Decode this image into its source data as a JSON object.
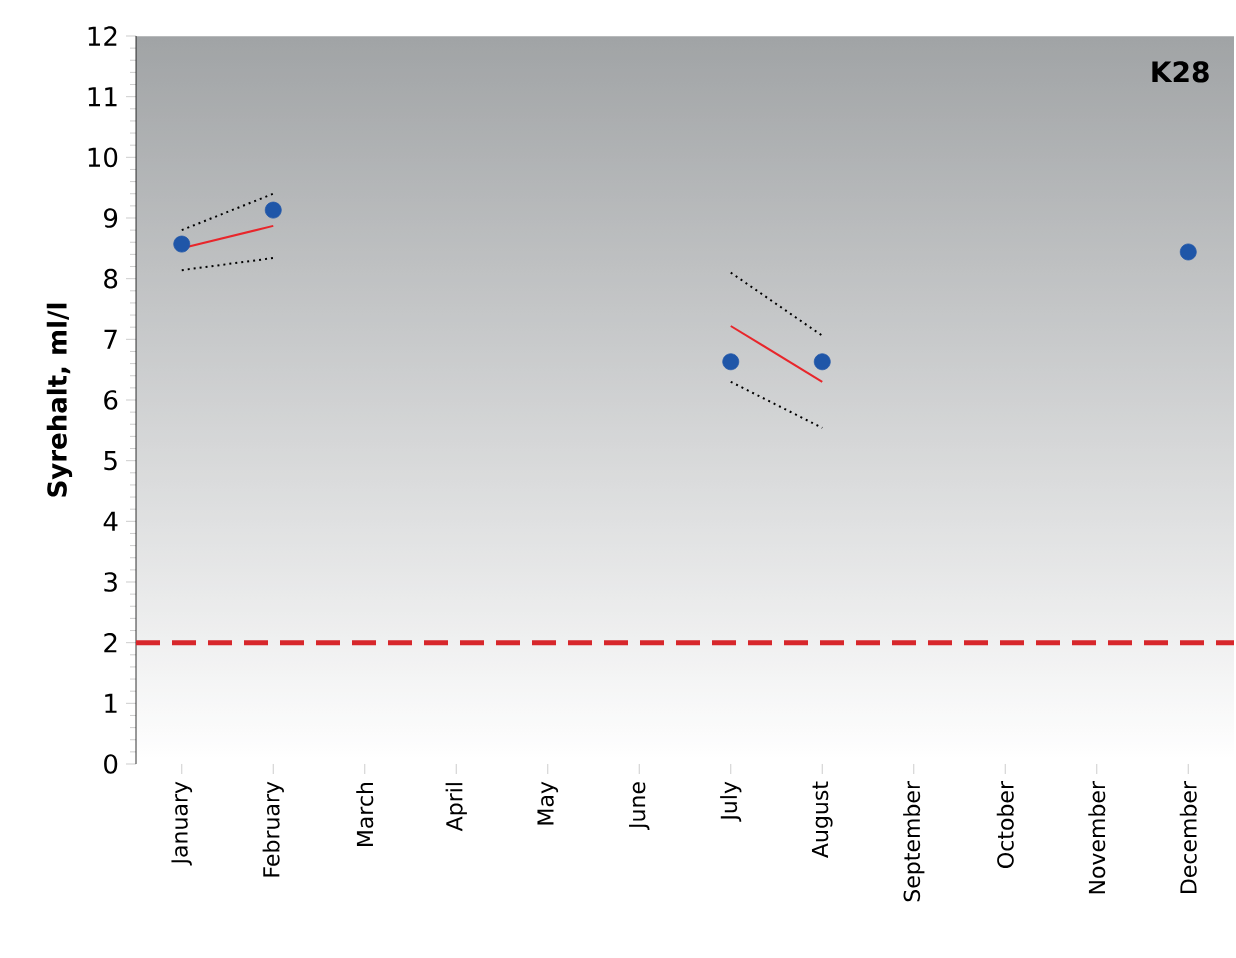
{
  "chart_data": {
    "type": "scatter",
    "ylabel": "Syrehalt, ml/l",
    "categories": [
      "January",
      "February",
      "March",
      "April",
      "May",
      "June",
      "July",
      "August",
      "September",
      "October",
      "November",
      "December"
    ],
    "ylim": [
      0,
      12
    ],
    "yticks": [
      0,
      1,
      2,
      3,
      4,
      5,
      6,
      7,
      8,
      9,
      10,
      11,
      12
    ],
    "grid": false,
    "series": [
      {
        "marker": "circle",
        "color": "#1f56a8",
        "values": [
          8.57,
          9.13,
          null,
          null,
          null,
          null,
          6.63,
          6.63,
          null,
          null,
          null,
          8.44
        ]
      },
      {
        "type": "line",
        "marker": "none",
        "line_style": "solid",
        "color": "#e8262b",
        "x": [
          "January",
          "February"
        ],
        "values": [
          8.5,
          8.87
        ]
      },
      {
        "type": "line",
        "marker": "none",
        "line_style": "dotted",
        "color": "#000000",
        "x": [
          "January",
          "February"
        ],
        "values": [
          8.14,
          8.34
        ]
      },
      {
        "type": "line",
        "marker": "none",
        "line_style": "dotted",
        "color": "#000000",
        "x": [
          "January",
          "February"
        ],
        "values": [
          8.8,
          9.4
        ]
      },
      {
        "type": "line",
        "marker": "none",
        "line_style": "solid",
        "color": "#e8262b",
        "x": [
          "July",
          "August"
        ],
        "values": [
          7.22,
          6.3
        ]
      },
      {
        "type": "line",
        "marker": "none",
        "line_style": "dotted",
        "color": "#000000",
        "x": [
          "July",
          "August"
        ],
        "values": [
          6.3,
          5.54
        ]
      },
      {
        "type": "line",
        "marker": "none",
        "line_style": "dotted",
        "color": "#000000",
        "x": [
          "July",
          "August"
        ],
        "values": [
          8.1,
          7.06
        ]
      }
    ],
    "ref_lines": [
      {
        "axis": "y",
        "value": 2,
        "color": "#d7262b",
        "line_style": "dashed"
      }
    ],
    "annotations": [
      "K28"
    ]
  }
}
